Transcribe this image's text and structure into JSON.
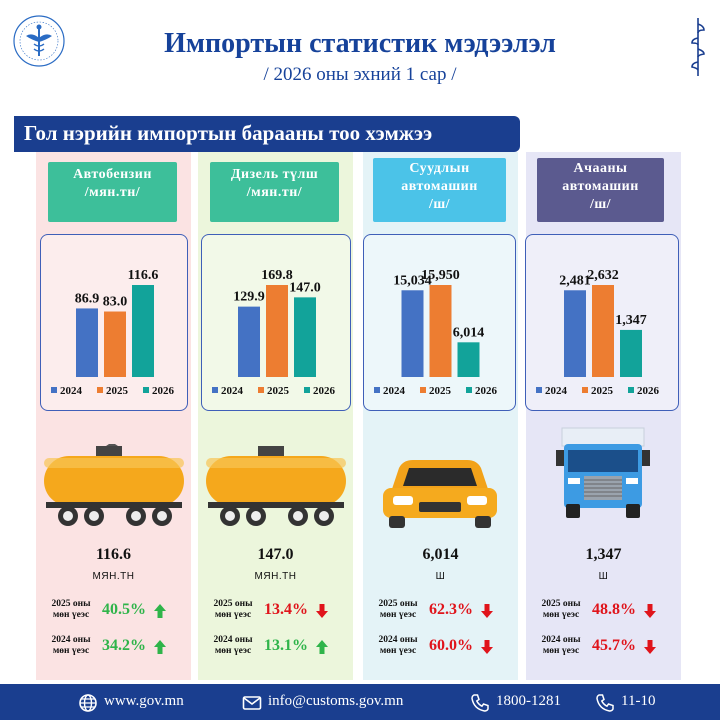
{
  "header": {
    "title": "Импортын статистик мэдээлэл",
    "subtitle": "/ 2026 оны эхний 1 сар /",
    "logo_icon": "customs-emblem-icon",
    "script_icon": "mongolian-script-icon"
  },
  "banner": {
    "text": "Гол нэрийн импортын барааны тоо хэмжээ"
  },
  "colors": {
    "y2024": "#4472c4",
    "y2025": "#ed7d31",
    "y2026": "#12a39a",
    "up": "#2fb44a",
    "down": "#e0141b",
    "brand": "#1a3e8f"
  },
  "chart_data": [
    {
      "type": "bar",
      "title_lines": [
        "Автобензин",
        "/мян.тн/"
      ],
      "categories": [
        "2024",
        "2025",
        "2026"
      ],
      "values": [
        86.9,
        83.0,
        116.6
      ],
      "value_labels": [
        "86.9",
        "83.0",
        "116.6"
      ],
      "legend": [
        "2024",
        "2025",
        "2026"
      ]
    },
    {
      "type": "bar",
      "title_lines": [
        "Дизель түлш",
        "/мян.тн/"
      ],
      "categories": [
        "2024",
        "2025",
        "2026"
      ],
      "values": [
        129.9,
        169.8,
        147.0
      ],
      "value_labels": [
        "129.9",
        "169.8",
        "147.0"
      ],
      "legend": [
        "2024",
        "2025",
        "2026"
      ]
    },
    {
      "type": "bar",
      "title_lines": [
        "Суудлын",
        "автомашин",
        "/ш/"
      ],
      "categories": [
        "2024",
        "2025",
        "2026"
      ],
      "values": [
        15034,
        15950,
        6014
      ],
      "value_labels": [
        "15,034",
        "15,950",
        "6,014"
      ],
      "legend": [
        "2024",
        "2025",
        "2026"
      ]
    },
    {
      "type": "bar",
      "title_lines": [
        "Ачааны",
        "автомашин",
        "/ш/"
      ],
      "categories": [
        "2024",
        "2025",
        "2026"
      ],
      "values": [
        2481,
        2632,
        1347
      ],
      "value_labels": [
        "2,481",
        "2,632",
        "1,347"
      ],
      "legend": [
        "2024",
        "2025",
        "2026"
      ]
    }
  ],
  "columns": [
    {
      "value": "116.6",
      "unit": "МЯН.ТН",
      "vehicle_icon": "tank-car-icon",
      "cmp": [
        {
          "label_1": "2025 оны",
          "label_2": "мөн үеэс",
          "pct": "40.5%",
          "dir": "up"
        },
        {
          "label_1": "2024 оны",
          "label_2": "мөн үеэс",
          "pct": "34.2%",
          "dir": "up"
        }
      ]
    },
    {
      "value": "147.0",
      "unit": "МЯН.ТН",
      "vehicle_icon": "tank-car-icon",
      "cmp": [
        {
          "label_1": "2025 оны",
          "label_2": "мөн үеэс",
          "pct": "13.4%",
          "dir": "down"
        },
        {
          "label_1": "2024 оны",
          "label_2": "мөн үеэс",
          "pct": "13.1%",
          "dir": "up"
        }
      ]
    },
    {
      "value": "6,014",
      "unit": "Ш",
      "vehicle_icon": "car-icon",
      "cmp": [
        {
          "label_1": "2025 оны",
          "label_2": "мөн үеэс",
          "pct": "62.3%",
          "dir": "down"
        },
        {
          "label_1": "2024 оны",
          "label_2": "мөн үеэс",
          "pct": "60.0%",
          "dir": "down"
        }
      ]
    },
    {
      "value": "1,347",
      "unit": "Ш",
      "vehicle_icon": "truck-icon",
      "cmp": [
        {
          "label_1": "2025 оны",
          "label_2": "мөн үеэс",
          "pct": "48.8%",
          "dir": "down"
        },
        {
          "label_1": "2024 оны",
          "label_2": "мөн үеэс",
          "pct": "45.7%",
          "dir": "down"
        }
      ]
    }
  ],
  "footer": {
    "website": "www.gov.mn",
    "email": "info@customs.gov.mn",
    "phone_1": "1800-1281",
    "phone_2": "11-10",
    "icons": [
      "globe-icon",
      "mail-icon",
      "phone-icon",
      "phone-icon"
    ]
  }
}
